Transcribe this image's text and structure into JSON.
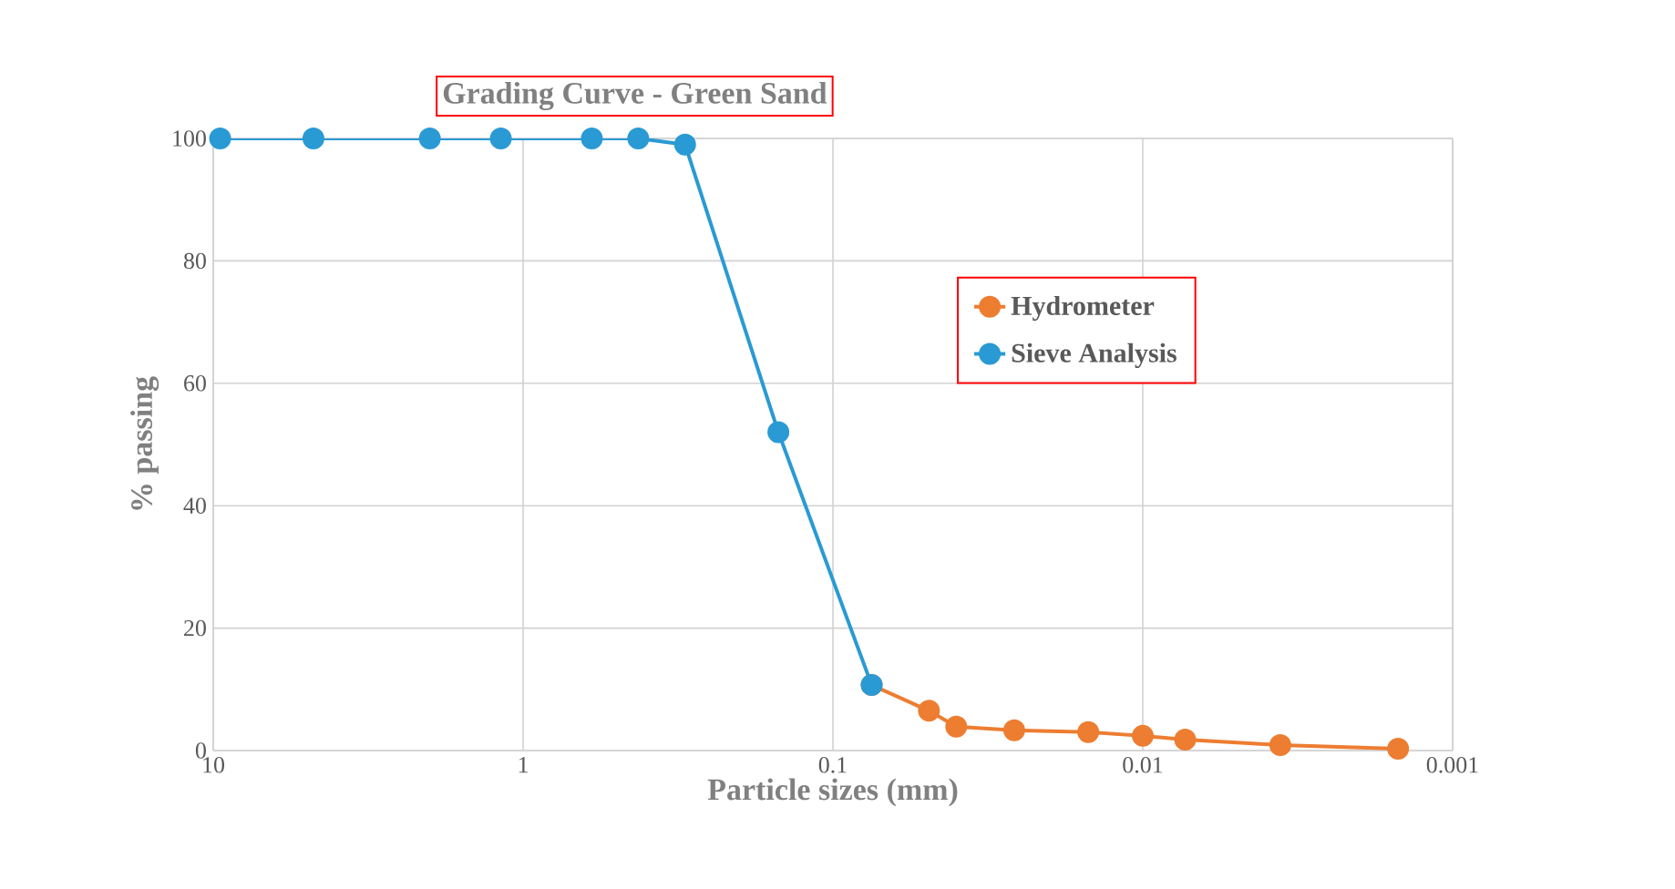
{
  "chart_data": {
    "type": "line",
    "title": "Grading Curve - Green Sand",
    "xlabel": "Particle sizes (mm)",
    "ylabel": "% passing",
    "log": "x",
    "xlim": [
      10,
      0.001
    ],
    "xticks": [
      10,
      1,
      0.1,
      0.01,
      0.001
    ],
    "ylim": [
      0,
      100
    ],
    "yticks": [
      0,
      20,
      40,
      60,
      80,
      100
    ],
    "grid": true,
    "legend": "top right",
    "marker": "circle",
    "line_style": "solid",
    "series": [
      {
        "name": "Hydrometer",
        "color": "#ed7d31",
        "x": [
          0.075,
          0.049,
          0.04,
          0.026,
          0.015,
          0.01,
          0.0073,
          0.0036,
          0.0015
        ],
        "values": [
          10.7,
          6.5,
          3.9,
          3.3,
          3.0,
          2.4,
          1.8,
          0.9,
          0.3
        ]
      },
      {
        "name": "Sieve Analysis",
        "color": "#2a9ad4",
        "x": [
          9.5,
          4.75,
          2,
          1.18,
          0.6,
          0.425,
          0.3,
          0.15,
          0.075
        ],
        "values": [
          100,
          100,
          100,
          100,
          100,
          100,
          99,
          52,
          10.7
        ]
      }
    ]
  }
}
